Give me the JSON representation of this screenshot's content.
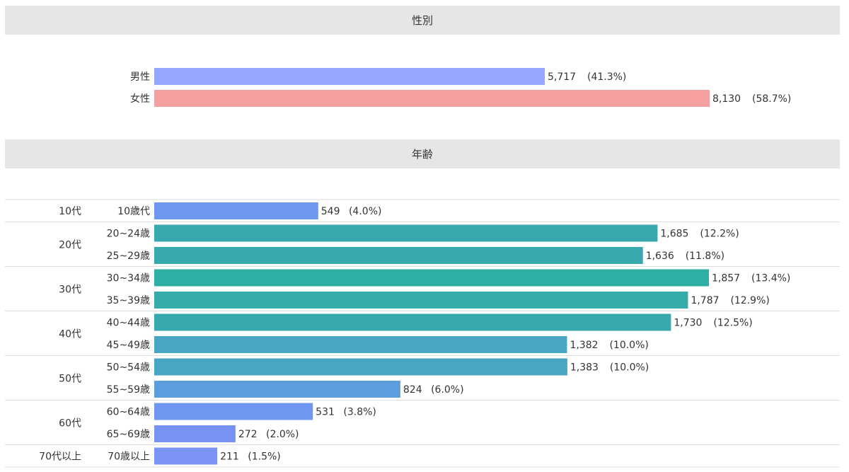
{
  "sections": {
    "gender_title": "性別",
    "age_title": "年齢"
  },
  "chart_data": [
    {
      "type": "bar",
      "orientation": "horizontal",
      "title": "性別",
      "max_value": 8130,
      "categories": [
        "男性",
        "女性"
      ],
      "values": [
        5717,
        8130
      ],
      "value_labels": [
        "5,717",
        "8,130"
      ],
      "percent_labels": [
        "(41.3%)",
        "(58.7%)"
      ],
      "colors": [
        "#97a7ff",
        "#f5a0a0"
      ]
    },
    {
      "type": "bar",
      "orientation": "horizontal",
      "title": "年齢",
      "max_value": 1857,
      "groups": [
        {
          "label": "10代",
          "items": [
            {
              "label": "10歳代",
              "value": 549,
              "value_label": "549",
              "percent": "(4.0%)",
              "color": "#6f96f0"
            }
          ]
        },
        {
          "label": "20代",
          "items": [
            {
              "label": "20~24歳",
              "value": 1685,
              "value_label": "1,685",
              "percent": "(12.2%)",
              "color": "#37a8ad"
            },
            {
              "label": "25~29歳",
              "value": 1636,
              "value_label": "1,636",
              "percent": "(11.8%)",
              "color": "#37a8ad"
            }
          ]
        },
        {
          "label": "30代",
          "items": [
            {
              "label": "30~34歳",
              "value": 1857,
              "value_label": "1,857",
              "percent": "(13.4%)",
              "color": "#2fb0a6"
            },
            {
              "label": "35~39歳",
              "value": 1787,
              "value_label": "1,787",
              "percent": "(12.9%)",
              "color": "#35abaa"
            }
          ]
        },
        {
          "label": "40代",
          "items": [
            {
              "label": "40~44歳",
              "value": 1730,
              "value_label": "1,730",
              "percent": "(12.5%)",
              "color": "#37a8ad"
            },
            {
              "label": "45~49歳",
              "value": 1382,
              "value_label": "1,382",
              "percent": "(10.0%)",
              "color": "#48a6c3"
            }
          ]
        },
        {
          "label": "50代",
          "items": [
            {
              "label": "50~54歳",
              "value": 1383,
              "value_label": "1,383",
              "percent": "(10.0%)",
              "color": "#48a6c3"
            },
            {
              "label": "55~59歳",
              "value": 824,
              "value_label": "824",
              "percent": "(6.0%)",
              "color": "#5b9ddd"
            }
          ]
        },
        {
          "label": "60代",
          "items": [
            {
              "label": "60~64歳",
              "value": 531,
              "value_label": "531",
              "percent": "(3.8%)",
              "color": "#6f96f0"
            },
            {
              "label": "65~69歳",
              "value": 272,
              "value_label": "272",
              "percent": "(2.0%)",
              "color": "#7693f3"
            }
          ]
        },
        {
          "label": "70代以上",
          "items": [
            {
              "label": "70歳以上",
              "value": 211,
              "value_label": "211",
              "percent": "(1.5%)",
              "color": "#7c94f5"
            }
          ]
        }
      ]
    }
  ]
}
